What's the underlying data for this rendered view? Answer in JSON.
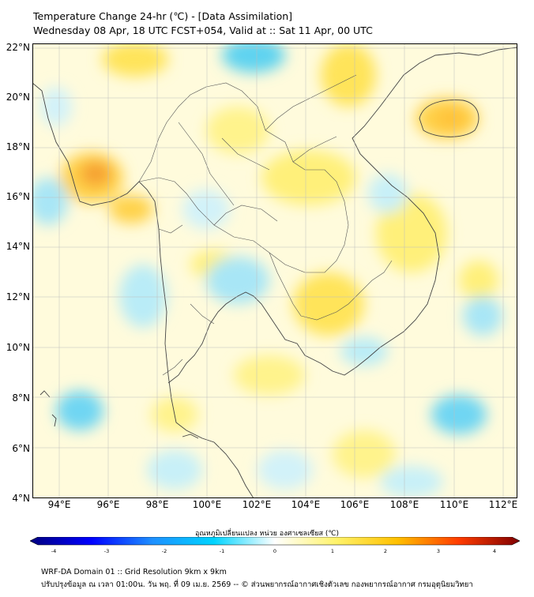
{
  "header": {
    "title_line1": "Temperature Change 24-hr (℃) - [Data Assimilation]",
    "title_line2": "Wednesday 08 Apr, 18 UTC FCST+054, Valid at :: Sat 11 Apr, 00 UTC"
  },
  "map": {
    "lat_labels": [
      "22°N",
      "20°N",
      "18°N",
      "16°N",
      "14°N",
      "12°N",
      "10°N",
      "8°N",
      "6°N",
      "4°N"
    ],
    "lon_labels": [
      "94°E",
      "96°E",
      "98°E",
      "100°E",
      "102°E",
      "104°E",
      "106°E",
      "108°E",
      "110°E",
      "112°E"
    ],
    "gridlines": true
  },
  "colorbar": {
    "title": "อุณหภูมิเปลี่ยนแปลง หน่วย องศาเซลเซียส (℃)",
    "tick_labels": [
      "-4",
      "-3",
      "-2",
      "-1",
      "0",
      "1",
      "2",
      "3",
      "4"
    ],
    "min": -4,
    "max": 4,
    "colors": [
      "#00007f",
      "#0000ff",
      "#1e90ff",
      "#00d4ff",
      "#ffffff",
      "#fff36b",
      "#ffc000",
      "#ff3c00",
      "#7f0000"
    ]
  },
  "footer": {
    "line1": "WRF-DA Domain 01 :: Grid Resolution 9km x 9km",
    "line2": "ปรับปรุงข้อมูล ณ เวลา 01:00น. วัน พฤ. ที่ 09 เม.ย. 2569 -- © ส่วนพยากรณ์อากาศเชิงตัวเลข กองพยากรณ์อากาศ กรมอุตุนิยมวิทยา"
  }
}
